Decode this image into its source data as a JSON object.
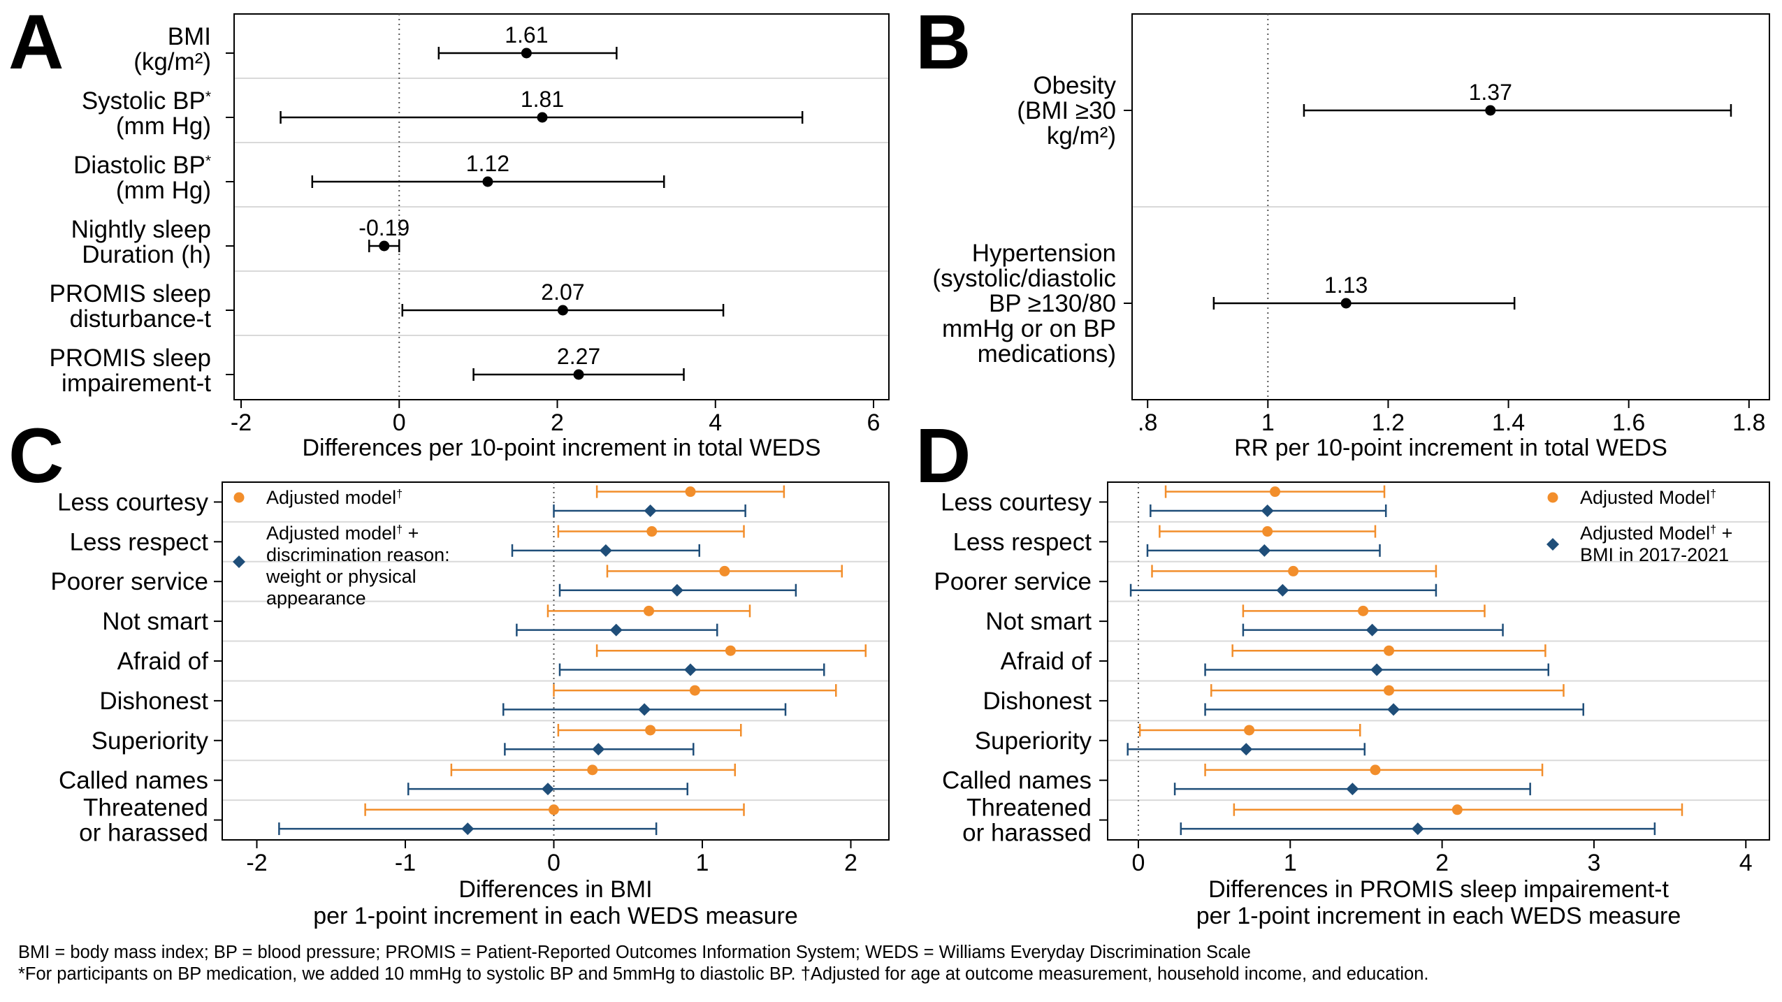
{
  "colors": {
    "black": "#000000",
    "orange": "#f28e2b",
    "navy": "#1f4e79",
    "divider": "#d9d9d9",
    "frame": "#000000"
  },
  "chart_data": [
    {
      "panel": "A",
      "type": "scatter",
      "style": "forest-plot",
      "xlabel": "Differences per 10-point increment in total WEDS",
      "xlim": [
        -2,
        6
      ],
      "xticks": [
        -2,
        0,
        2,
        4,
        6
      ],
      "xtick_labels": [
        "-2",
        "0",
        "2",
        "4",
        "6"
      ],
      "reference_line": 0,
      "rows": [
        {
          "label_lines": [
            "BMI",
            "(kg/m²)"
          ],
          "estimate": 1.61,
          "ci": [
            0.5,
            2.75
          ],
          "value_label": "1.61"
        },
        {
          "label_lines": [
            "Systolic BP*",
            "(mm Hg)"
          ],
          "estimate": 1.81,
          "ci": [
            -1.5,
            5.1
          ],
          "value_label": "1.81"
        },
        {
          "label_lines": [
            "Diastolic BP*",
            "(mm Hg)"
          ],
          "estimate": 1.12,
          "ci": [
            -1.1,
            3.35
          ],
          "value_label": "1.12"
        },
        {
          "label_lines": [
            "Nightly sleep",
            "Duration (h)"
          ],
          "estimate": -0.19,
          "ci": [
            -0.38,
            0.0
          ],
          "value_label": "-0.19"
        },
        {
          "label_lines": [
            "PROMIS sleep",
            "disturbance-t"
          ],
          "estimate": 2.07,
          "ci": [
            0.04,
            4.1
          ],
          "value_label": "2.07"
        },
        {
          "label_lines": [
            "PROMIS sleep",
            "impairement-t"
          ],
          "estimate": 2.27,
          "ci": [
            0.94,
            3.6
          ],
          "value_label": "2.27"
        }
      ]
    },
    {
      "panel": "B",
      "type": "scatter",
      "style": "forest-plot",
      "xlabel": "RR per 10-point increment in total WEDS",
      "xlim": [
        0.78,
        1.82
      ],
      "xticks": [
        0.8,
        1.0,
        1.2,
        1.4,
        1.6,
        1.8
      ],
      "xtick_labels": [
        ".8",
        "1",
        "1.2",
        "1.4",
        "1.6",
        "1.8"
      ],
      "reference_line": 1.0,
      "rows": [
        {
          "label_lines": [
            "Obesity",
            "(BMI ≥30",
            "kg/m²)"
          ],
          "estimate": 1.37,
          "ci": [
            1.06,
            1.77
          ],
          "value_label": "1.37"
        },
        {
          "label_lines": [
            "Hypertension",
            "(systolic/diastolic",
            "BP ≥130/80",
            "mmHg or on BP",
            "medications)"
          ],
          "estimate": 1.13,
          "ci": [
            0.91,
            1.41
          ],
          "value_label": "1.13"
        }
      ]
    },
    {
      "panel": "C",
      "type": "scatter",
      "style": "forest-plot",
      "xlabel_lines": [
        "Differences in BMI",
        "per 1-point increment in each WEDS measure"
      ],
      "xlim": [
        -2.2,
        2.2
      ],
      "xticks": [
        -2,
        -1,
        0,
        1,
        2
      ],
      "xtick_labels": [
        "-2",
        "-1",
        "0",
        "1",
        "2"
      ],
      "reference_line": 0,
      "legend": {
        "position": "top-left",
        "items": [
          {
            "series": "adjusted",
            "text_lines": [
              "Adjusted model†"
            ]
          },
          {
            "series": "adjusted_plus",
            "text_lines": [
              "Adjusted model† +",
              "discrimination reason:",
              "weight or physical",
              "appearance"
            ]
          }
        ]
      },
      "series": [
        {
          "key": "adjusted",
          "marker": "circle",
          "color": "#f28e2b",
          "estimates": [
            0.92,
            0.66,
            1.15,
            0.64,
            1.19,
            0.95,
            0.65,
            0.26,
            0.0
          ],
          "ci": [
            [
              0.29,
              1.55
            ],
            [
              0.03,
              1.28
            ],
            [
              0.36,
              1.94
            ],
            [
              -0.04,
              1.32
            ],
            [
              0.29,
              2.1
            ],
            [
              0.0,
              1.9
            ],
            [
              0.03,
              1.26
            ],
            [
              -0.69,
              1.22
            ],
            [
              -1.27,
              1.28
            ]
          ]
        },
        {
          "key": "adjusted_plus",
          "marker": "diamond",
          "color": "#1f4e79",
          "estimates": [
            0.65,
            0.35,
            0.83,
            0.42,
            0.92,
            0.61,
            0.3,
            -0.04,
            -0.58
          ],
          "ci": [
            [
              0.0,
              1.29
            ],
            [
              -0.28,
              0.98
            ],
            [
              0.04,
              1.63
            ],
            [
              -0.25,
              1.1
            ],
            [
              0.04,
              1.82
            ],
            [
              -0.34,
              1.56
            ],
            [
              -0.33,
              0.94
            ],
            [
              -0.98,
              0.9
            ],
            [
              -1.85,
              0.69
            ]
          ]
        }
      ],
      "categories": [
        {
          "label_lines": [
            "Less courtesy"
          ]
        },
        {
          "label_lines": [
            "Less respect"
          ]
        },
        {
          "label_lines": [
            "Poorer service"
          ]
        },
        {
          "label_lines": [
            "Not smart"
          ]
        },
        {
          "label_lines": [
            "Afraid of"
          ]
        },
        {
          "label_lines": [
            "Dishonest"
          ]
        },
        {
          "label_lines": [
            "Superiority"
          ]
        },
        {
          "label_lines": [
            "Called names"
          ]
        },
        {
          "label_lines": [
            "Threatened",
            "or harassed"
          ]
        }
      ]
    },
    {
      "panel": "D",
      "type": "scatter",
      "style": "forest-plot",
      "xlabel_lines": [
        "Differences in PROMIS sleep impairement-t",
        "per 1-point increment in each WEDS measure"
      ],
      "xlim": [
        -0.17,
        4.1
      ],
      "xticks": [
        0,
        1,
        2,
        3,
        4
      ],
      "xtick_labels": [
        "0",
        "1",
        "2",
        "3",
        "4"
      ],
      "reference_line": 0,
      "legend": {
        "position": "top-right",
        "items": [
          {
            "series": "adjusted",
            "text_lines": [
              "Adjusted Model†"
            ]
          },
          {
            "series": "adjusted_plus",
            "text_lines": [
              "Adjusted Model† +",
              "BMI in 2017-2021"
            ]
          }
        ]
      },
      "series": [
        {
          "key": "adjusted",
          "marker": "circle",
          "color": "#f28e2b",
          "estimates": [
            0.9,
            0.85,
            1.02,
            1.48,
            1.65,
            1.65,
            0.73,
            1.56,
            2.1
          ],
          "ci": [
            [
              0.18,
              1.62
            ],
            [
              0.14,
              1.56
            ],
            [
              0.09,
              1.96
            ],
            [
              0.69,
              2.28
            ],
            [
              0.62,
              2.68
            ],
            [
              0.48,
              2.8
            ],
            [
              0.01,
              1.46
            ],
            [
              0.44,
              2.66
            ],
            [
              0.63,
              3.58
            ]
          ]
        },
        {
          "key": "adjusted_plus",
          "marker": "diamond",
          "color": "#1f4e79",
          "estimates": [
            0.85,
            0.83,
            0.95,
            1.54,
            1.57,
            1.68,
            0.71,
            1.41,
            1.84
          ],
          "ci": [
            [
              0.08,
              1.63
            ],
            [
              0.06,
              1.59
            ],
            [
              -0.05,
              1.96
            ],
            [
              0.69,
              2.4
            ],
            [
              0.44,
              2.7
            ],
            [
              0.44,
              2.93
            ],
            [
              -0.07,
              1.49
            ],
            [
              0.24,
              2.58
            ],
            [
              0.28,
              3.4
            ]
          ]
        }
      ],
      "categories": [
        {
          "label_lines": [
            "Less courtesy"
          ]
        },
        {
          "label_lines": [
            "Less respect"
          ]
        },
        {
          "label_lines": [
            "Poorer service"
          ]
        },
        {
          "label_lines": [
            "Not smart"
          ]
        },
        {
          "label_lines": [
            "Afraid of"
          ]
        },
        {
          "label_lines": [
            "Dishonest"
          ]
        },
        {
          "label_lines": [
            "Superiority"
          ]
        },
        {
          "label_lines": [
            "Called names"
          ]
        },
        {
          "label_lines": [
            "Threatened",
            "or harassed"
          ]
        }
      ]
    }
  ],
  "footnotes": [
    "BMI = body mass index; BP = blood pressure; PROMIS = Patient-Reported Outcomes Information System; WEDS = Williams Everyday Discrimination Scale",
    "*For participants on BP medication, we added 10 mmHg to systolic BP and 5mmHg to diastolic BP. †Adjusted for age at outcome measurement, household income, and education."
  ]
}
